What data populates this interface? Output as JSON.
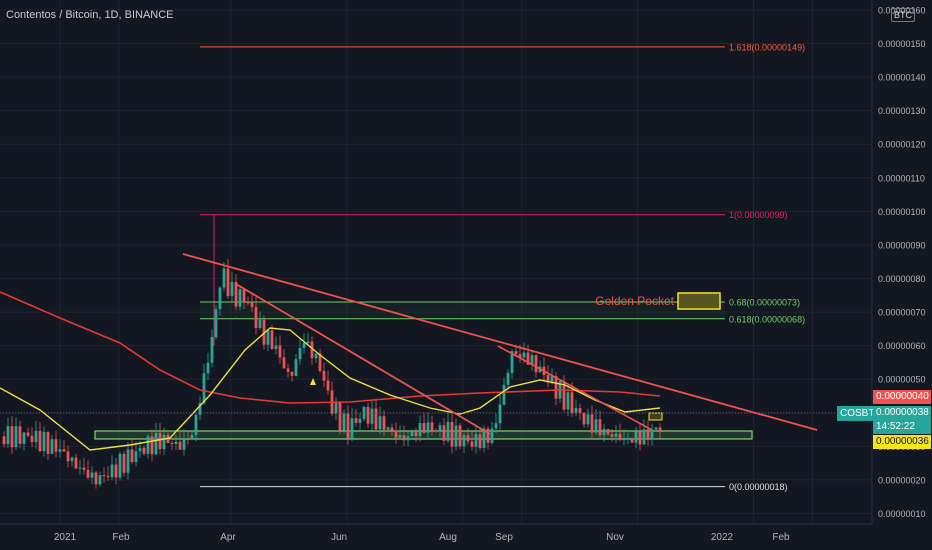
{
  "header": {
    "title": "Contentos / Bitcoin, 1D, BINANCE",
    "currency_button": "BTC"
  },
  "price_scale": {
    "labels": [
      "0.00000160",
      "0.00000150",
      "0.00000140",
      "0.00000130",
      "0.00000120",
      "0.00000110",
      "0.00000100",
      "0.00000090",
      "0.00000080",
      "0.00000070",
      "0.00000060",
      "0.00000050",
      "0.00000040",
      "0.00000030",
      "0.00000020",
      "0.00000010"
    ],
    "red_tag": "0.00000040",
    "last_price": "0.00000038",
    "countdown": "14:52:22",
    "yellow_tag": "0.00000036"
  },
  "symbol_label": "COSBTC",
  "time_axis": [
    "2021",
    "Feb",
    "Apr",
    "Jun",
    "Aug",
    "Sep",
    "Nov",
    "2022",
    "Feb"
  ],
  "levels": {
    "fib_1618": "1.618(0.00000149)",
    "fib_1": "1(0.00000099)",
    "fib_068": "0.68(0.00000073)",
    "fib_0618": "0.618(0.00000068)",
    "fib_0": "0(0.00000018)"
  },
  "annotation": "Golden Pocket",
  "colors": {
    "background": "#131722",
    "up": "#26a69a",
    "down": "#ef5350",
    "ma_red": "#e53935",
    "ma_yellow": "#f0e040",
    "fib_green": "#6fcf6a",
    "fib_pink": "#e91e63",
    "fib_orange": "#ff5a36"
  },
  "chart_data": {
    "type": "candlestick",
    "y_range": [
      5e-08,
      1.63e-06
    ],
    "candles": [
      [
        "2020-12-16",
        3.3e-07
      ],
      [
        "2020-12-24",
        3.1e-07
      ],
      [
        "2021-01-01",
        2.9e-07
      ],
      [
        "2021-01-10",
        2.4e-07
      ],
      [
        "2021-01-20",
        2e-07
      ],
      [
        "2021-01-27",
        2.2e-07
      ],
      [
        "2021-02-05",
        2.6e-07
      ],
      [
        "2021-02-15",
        3e-07
      ],
      [
        "2021-02-25",
        3.2e-07
      ],
      [
        "2021-03-05",
        3e-07
      ],
      [
        "2021-03-12",
        3.4e-07
      ],
      [
        "2021-03-17",
        4.8e-07
      ],
      [
        "2021-03-22",
        6.2e-07
      ],
      [
        "2021-03-27",
        8.2e-07
      ],
      [
        "2021-04-02",
        7.5e-07
      ],
      [
        "2021-04-09",
        7.4e-07
      ],
      [
        "2021-04-17",
        6.4e-07
      ],
      [
        "2021-04-24",
        6e-07
      ],
      [
        "2021-05-02",
        5e-07
      ],
      [
        "2021-05-09",
        6.2e-07
      ],
      [
        "2021-05-17",
        5.5e-07
      ],
      [
        "2021-05-24",
        4.2e-07
      ],
      [
        "2021-06-01",
        3.5e-07
      ],
      [
        "2021-06-10",
        4e-07
      ],
      [
        "2021-06-21",
        3.6e-07
      ],
      [
        "2021-06-30",
        3.2e-07
      ],
      [
        "2021-07-12",
        3.6e-07
      ],
      [
        "2021-07-24",
        3.4e-07
      ],
      [
        "2021-08-06",
        3.1e-07
      ],
      [
        "2021-08-17",
        3.4e-07
      ],
      [
        "2021-08-27",
        5.8e-07
      ],
      [
        "2021-09-05",
        5.6e-07
      ],
      [
        "2021-09-15",
        5e-07
      ],
      [
        "2021-09-24",
        4.4e-07
      ],
      [
        "2021-10-04",
        3.8e-07
      ],
      [
        "2021-10-15",
        3.4e-07
      ],
      [
        "2021-10-26",
        3.2e-07
      ],
      [
        "2021-11-05",
        3.3e-07
      ],
      [
        "2021-11-13",
        3.6e-07
      ],
      [
        "2021-11-22",
        3.8e-07
      ]
    ],
    "fib_levels": [
      1.618,
      1,
      0.68,
      0.618,
      0
    ],
    "fib_prices": [
      1.49e-06,
      9.9e-07,
      7.3e-07,
      6.8e-07,
      1.8e-07
    ]
  }
}
